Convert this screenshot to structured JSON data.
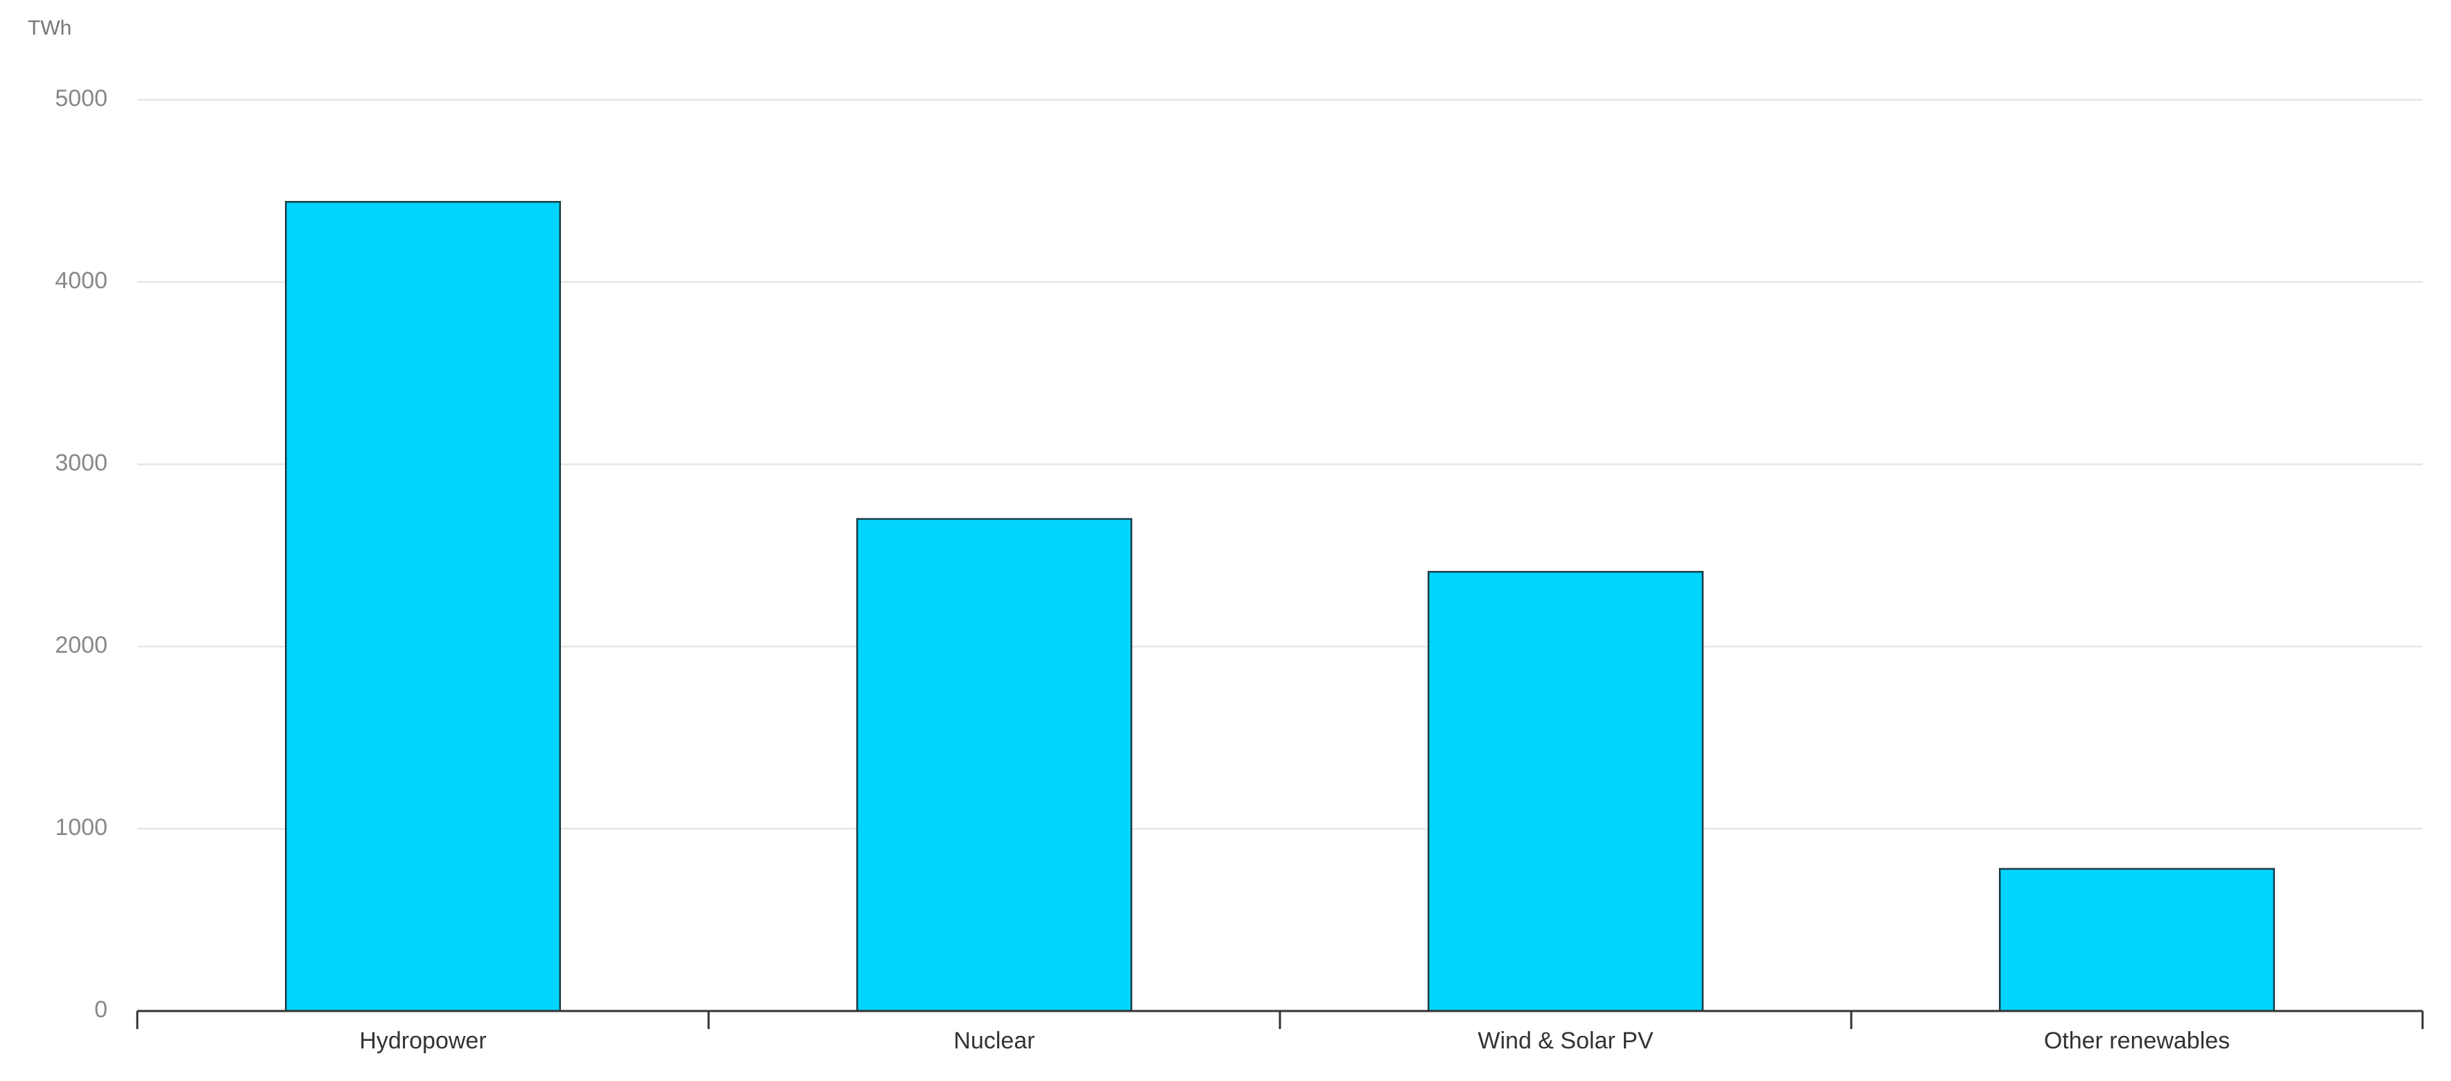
{
  "chart_data": {
    "type": "bar",
    "y_label": "TWh",
    "categories": [
      "Hydropower",
      "Nuclear",
      "Wind & Solar PV",
      "Other renewables"
    ],
    "values": [
      4440,
      2700,
      2410,
      780
    ],
    "color": "#00d4ff",
    "ylim": [
      0,
      5000
    ],
    "yticks": [
      0,
      1000,
      2000,
      3000,
      4000,
      5000
    ],
    "grid": true
  }
}
